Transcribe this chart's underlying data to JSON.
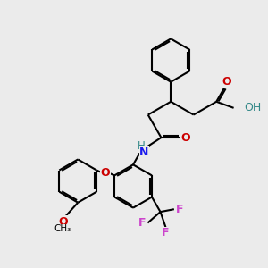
{
  "bg_color": "#ebebeb",
  "atom_colors": {
    "C": "#000000",
    "O": "#cc0000",
    "N": "#1a1aee",
    "F": "#cc44cc",
    "H": "#338888"
  },
  "bond_color": "#000000",
  "bond_width": 1.5,
  "dbo": 0.06,
  "figsize": [
    3.0,
    3.0
  ],
  "dpi": 100
}
